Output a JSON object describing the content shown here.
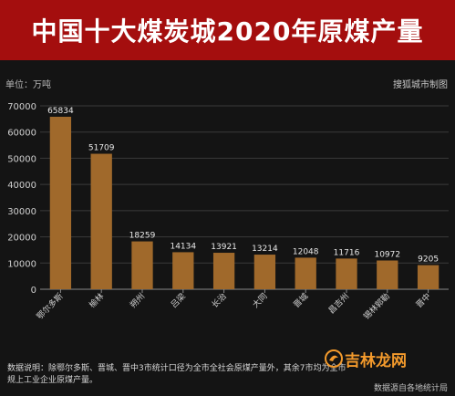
{
  "header": {
    "title": "中国十大煤炭城2020年原煤产量",
    "unit": "单位：万吨",
    "credit": "搜狐城市制图"
  },
  "colors": {
    "header_bg": "#a40e0e",
    "bar": "#a0692b",
    "background": "#141414"
  },
  "chart_data": {
    "type": "bar",
    "title": "中国十大煤炭城2020年原煤产量",
    "ylabel": "单位：万吨",
    "xlabel": "",
    "categories": [
      "鄂尔多斯",
      "榆林",
      "朔州",
      "吕梁",
      "长治",
      "大同",
      "晋城",
      "昌吉州",
      "锡林郭勒",
      "晋中"
    ],
    "values": [
      65834,
      51709,
      18259,
      14134,
      13921,
      13214,
      12048,
      11716,
      10972,
      9205
    ],
    "ylim": [
      0,
      70000
    ],
    "yticks": [
      0,
      10000,
      20000,
      30000,
      40000,
      50000,
      60000,
      70000
    ],
    "grid": true
  },
  "footer": {
    "note": "数据说明：除鄂尔多斯、晋城、晋中3市统计口径为全市全社会原煤产量外，其余7市均为全市规上工业企业原煤产量。",
    "source": "数据源自各地统计局"
  },
  "watermark": {
    "text": "吉林龙网",
    "icon": "dragon-logo-icon"
  }
}
